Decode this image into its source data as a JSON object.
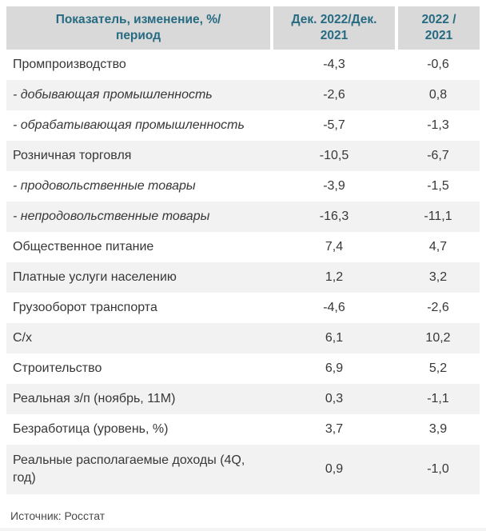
{
  "colors": {
    "header_bg": "#d9d9d9",
    "header_text": "#266b82",
    "row_alt_bg": "#f2f2f2",
    "body_text": "#373737",
    "source_text": "#4a4a4a"
  },
  "table": {
    "header": {
      "col1": "Показатель, изменение, %/период",
      "col2": "Дек. 2022/Дек. 2021",
      "col3": "2022 / 2021"
    },
    "rows": [
      {
        "label": "Промпроизводство",
        "dec": "-4,3",
        "year": "-0,6",
        "sub": false
      },
      {
        "label": "- добывающая промышленность",
        "dec": "-2,6",
        "year": "0,8",
        "sub": true
      },
      {
        "label": "- обрабатывающая промышленность",
        "dec": "-5,7",
        "year": "-1,3",
        "sub": true
      },
      {
        "label": "Розничная торговля",
        "dec": "-10,5",
        "year": "-6,7",
        "sub": false
      },
      {
        "label": "- продовольственные товары",
        "dec": "-3,9",
        "year": "-1,5",
        "sub": true
      },
      {
        "label": "- непродовольственные товары",
        "dec": "-16,3",
        "year": "-11,1",
        "sub": true
      },
      {
        "label": "Общественное питание",
        "dec": "7,4",
        "year": "4,7",
        "sub": false
      },
      {
        "label": "Платные услуги населению",
        "dec": "1,2",
        "year": "3,2",
        "sub": false
      },
      {
        "label": "Грузооборот транспорта",
        "dec": "-4,6",
        "year": "-2,6",
        "sub": false
      },
      {
        "label": "С/х",
        "dec": "6,1",
        "year": "10,2",
        "sub": false
      },
      {
        "label": "Строительство",
        "dec": "6,9",
        "year": "5,2",
        "sub": false
      },
      {
        "label": "Реальная з/п (ноябрь, 11М)",
        "dec": "0,3",
        "year": "-1,1",
        "sub": false
      },
      {
        "label": "Безработица (уровень, %)",
        "dec": "3,7",
        "year": "3,9",
        "sub": false
      },
      {
        "label": "Реальные располагаемые доходы (4Q, год)",
        "dec": "0,9",
        "year": "-1,0",
        "sub": false
      }
    ],
    "source": "Источник: Росстат"
  },
  "chart_data": {
    "type": "table",
    "title": "",
    "columns": [
      "Показатель, изменение, %/период",
      "Дек. 2022/Дек. 2021",
      "2022 / 2021"
    ],
    "rows": [
      [
        "Промпроизводство",
        -4.3,
        -0.6
      ],
      [
        "- добывающая промышленность",
        -2.6,
        0.8
      ],
      [
        "- обрабатывающая промышленность",
        -5.7,
        -1.3
      ],
      [
        "Розничная торговля",
        -10.5,
        -6.7
      ],
      [
        "- продовольственные товары",
        -3.9,
        -1.5
      ],
      [
        "- непродовольственные товары",
        -16.3,
        -11.1
      ],
      [
        "Общественное питание",
        7.4,
        4.7
      ],
      [
        "Платные услуги населению",
        1.2,
        3.2
      ],
      [
        "Грузооборот транспорта",
        -4.6,
        -2.6
      ],
      [
        "С/х",
        6.1,
        10.2
      ],
      [
        "Строительство",
        6.9,
        5.2
      ],
      [
        "Реальная з/п (ноябрь, 11М)",
        0.3,
        -1.1
      ],
      [
        "Безработица (уровень, %)",
        3.7,
        3.9
      ],
      [
        "Реальные располагаемые доходы (4Q, год)",
        0.9,
        -1.0
      ]
    ],
    "decimal_separator": ",",
    "source": "Источник: Росстат"
  }
}
